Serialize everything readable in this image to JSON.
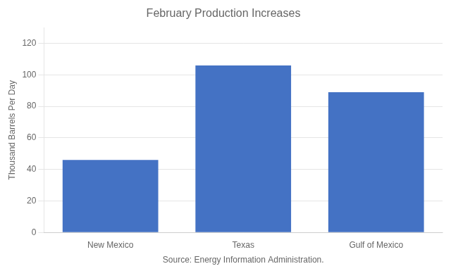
{
  "chart_data": {
    "type": "bar",
    "title": "February Production Increases",
    "categories": [
      "New Mexico",
      "Texas",
      "Gulf of Mexico"
    ],
    "values": [
      46,
      106,
      89
    ],
    "color": "#4472C4",
    "ylabel": "Thousand Barrels Per Day",
    "xlabel": "Source: Energy Information Administration.",
    "ylim": [
      0,
      130
    ],
    "yticks": [
      0,
      20,
      40,
      60,
      80,
      100,
      120
    ],
    "grid": true
  }
}
